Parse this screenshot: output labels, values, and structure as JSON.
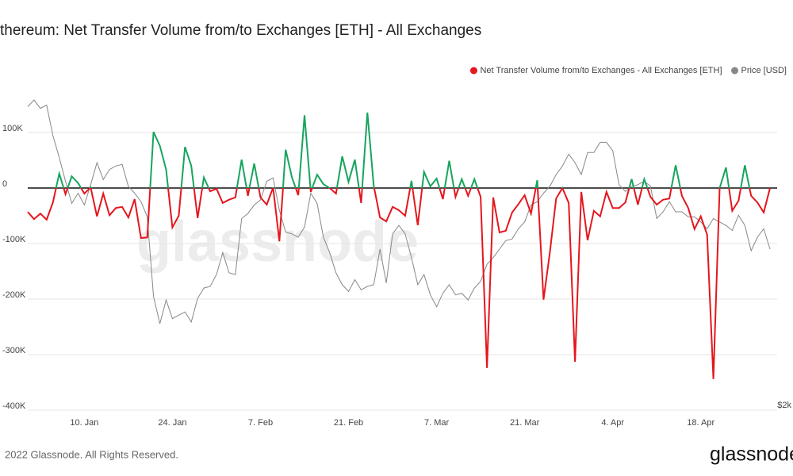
{
  "chart_data": {
    "type": "line",
    "title": "thereum: Net Transfer Volume from/to Exchanges [ETH] - All Exchanges",
    "watermark": "glassnode",
    "footer": "2022 Glassnode. All Rights Reserved.",
    "logo": "glassnode",
    "x": [
      "01-01",
      "01-02",
      "01-03",
      "01-04",
      "01-05",
      "01-06",
      "01-07",
      "01-08",
      "01-09",
      "01-10",
      "01-11",
      "01-12",
      "01-13",
      "01-14",
      "01-15",
      "01-16",
      "01-17",
      "01-18",
      "01-19",
      "01-20",
      "01-21",
      "01-22",
      "01-23",
      "01-24",
      "01-25",
      "01-26",
      "01-27",
      "01-28",
      "01-29",
      "01-30",
      "01-31",
      "02-01",
      "02-02",
      "02-03",
      "02-04",
      "02-05",
      "02-06",
      "02-07",
      "02-08",
      "02-09",
      "02-10",
      "02-11",
      "02-12",
      "02-13",
      "02-14",
      "02-15",
      "02-16",
      "02-17",
      "02-18",
      "02-19",
      "02-20",
      "02-21",
      "02-22",
      "02-23",
      "02-24",
      "02-25",
      "02-26",
      "02-27",
      "02-28",
      "03-01",
      "03-02",
      "03-03",
      "03-04",
      "03-05",
      "03-06",
      "03-07",
      "03-08",
      "03-09",
      "03-10",
      "03-11",
      "03-12",
      "03-13",
      "03-14",
      "03-15",
      "03-16",
      "03-17",
      "03-18",
      "03-19",
      "03-20",
      "03-21",
      "03-22",
      "03-23",
      "03-24",
      "03-25",
      "03-26",
      "03-27",
      "03-28",
      "03-29",
      "03-30",
      "03-31",
      "04-01",
      "04-02",
      "04-03",
      "04-04",
      "04-05",
      "04-06",
      "04-07",
      "04-08",
      "04-09",
      "04-10",
      "04-11",
      "04-12",
      "04-13",
      "04-14",
      "04-15",
      "04-16",
      "04-17",
      "04-18",
      "04-19",
      "04-20",
      "04-21",
      "04-22",
      "04-23",
      "04-24",
      "04-25",
      "04-26",
      "04-27",
      "04-28",
      "04-29"
    ],
    "xlim": [
      "01-01",
      "04-29"
    ],
    "xticks": [
      {
        "value": "01-10",
        "label": "10. Jan"
      },
      {
        "value": "01-24",
        "label": "24. Jan"
      },
      {
        "value": "02-07",
        "label": "7. Feb"
      },
      {
        "value": "02-21",
        "label": "21. Feb"
      },
      {
        "value": "03-07",
        "label": "7. Mar"
      },
      {
        "value": "03-21",
        "label": "21. Mar"
      },
      {
        "value": "04-04",
        "label": "4. Apr"
      },
      {
        "value": "04-18",
        "label": "18. Apr"
      }
    ],
    "ylim": [
      -400000,
      180000
    ],
    "yticks": [
      {
        "value": 100000,
        "label": "100K"
      },
      0,
      {
        "value": -100000,
        "label": "-100K"
      },
      {
        "value": -200000,
        "label": "-200K"
      },
      {
        "value": -300000,
        "label": "-300K"
      },
      {
        "value": -400000,
        "label": "-400K"
      }
    ],
    "y2lim": [
      2000,
      3900
    ],
    "y2ticks": [
      {
        "value": 2000,
        "label": "$2k"
      }
    ],
    "grid": true,
    "legend": "top-right",
    "series": [
      {
        "name": "Net Transfer Volume from/to Exchanges - All Exchanges [ETH]",
        "color": "#e5161d",
        "positive_color": "#17a55d",
        "values": [
          -43000,
          -56000,
          -46000,
          -57000,
          -26000,
          26000,
          -11000,
          21000,
          9000,
          -10000,
          1000,
          -51000,
          -10000,
          -49000,
          -36000,
          -34000,
          -53000,
          -20000,
          -90000,
          -89000,
          101000,
          76000,
          33000,
          -71000,
          -50000,
          74000,
          40000,
          -54000,
          19000,
          -6000,
          -1000,
          -27000,
          -21000,
          -17000,
          51000,
          -14000,
          44000,
          -17000,
          -30000,
          1000,
          -96000,
          69000,
          19000,
          -13000,
          131000,
          -7000,
          24000,
          7000,
          0,
          -10000,
          57000,
          11000,
          51000,
          -27000,
          136000,
          4000,
          -53000,
          -60000,
          -34000,
          -40000,
          -50000,
          13000,
          -67000,
          29000,
          3000,
          17000,
          -20000,
          49000,
          -16000,
          16000,
          -14000,
          16000,
          -16000,
          -324000,
          -17000,
          -80000,
          -77000,
          -44000,
          -29000,
          -13000,
          -46000,
          14000,
          -201000,
          -116000,
          -19000,
          0,
          -27000,
          -313000,
          -7000,
          -94000,
          -41000,
          -51000,
          -7000,
          -36000,
          -36000,
          -26000,
          16000,
          -30000,
          16000,
          -16000,
          -30000,
          -21000,
          -19000,
          41000,
          -14000,
          -36000,
          -74000,
          -51000,
          -84000,
          -344000,
          0,
          37000,
          -41000,
          -23000,
          41000,
          -14000,
          -26000,
          -44000,
          0
        ]
      },
      {
        "name": "Price [USD]",
        "color": "#888888",
        "axis": "y2",
        "values": [
          3790,
          3830,
          3780,
          3800,
          3620,
          3490,
          3350,
          3220,
          3280,
          3210,
          3330,
          3460,
          3360,
          3420,
          3440,
          3450,
          3320,
          3280,
          3230,
          3140,
          2670,
          2510,
          2650,
          2540,
          2560,
          2580,
          2520,
          2660,
          2720,
          2730,
          2800,
          2930,
          2810,
          2800,
          3130,
          3160,
          3210,
          3240,
          3350,
          3370,
          3180,
          3050,
          3040,
          3020,
          3080,
          3280,
          3220,
          3020,
          2930,
          2810,
          2740,
          2700,
          2770,
          2710,
          2730,
          2740,
          2950,
          2750,
          3040,
          3090,
          3040,
          2900,
          2740,
          2800,
          2680,
          2610,
          2690,
          2740,
          2680,
          2690,
          2650,
          2720,
          2760,
          2860,
          2900,
          2950,
          3000,
          3010,
          3070,
          3110,
          3210,
          3230,
          3280,
          3320,
          3390,
          3440,
          3510,
          3460,
          3390,
          3520,
          3520,
          3580,
          3580,
          3530,
          3330,
          3290,
          3320,
          3330,
          3350,
          3320,
          3130,
          3170,
          3230,
          3170,
          3170,
          3140,
          3140,
          3110,
          3070,
          3130,
          3110,
          3090,
          3060,
          3150,
          3090,
          2940,
          3020,
          3070,
          2950
        ]
      }
    ]
  }
}
